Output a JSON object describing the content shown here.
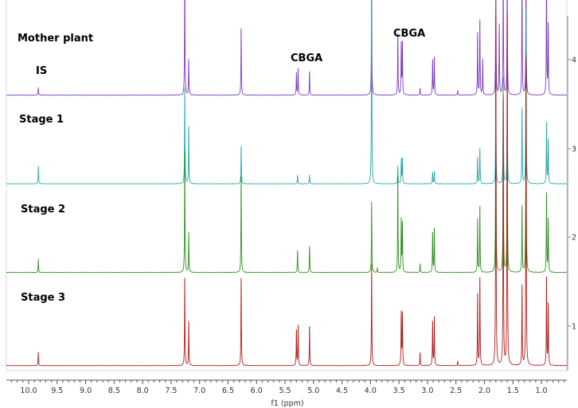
{
  "chart_data": {
    "type": "line",
    "subtype": "stacked NMR spectra",
    "xlabel": "f1 (ppm)",
    "xlim": [
      10.4,
      0.55
    ],
    "x_reversed": true,
    "x_ticks": [
      "10.0",
      "9.5",
      "9.0",
      "8.5",
      "8.0",
      "7.5",
      "7.0",
      "6.5",
      "6.0",
      "5.5",
      "5.0",
      "4.5",
      "4.0",
      "3.5",
      "3.0",
      "2.5",
      "2.0",
      "1.5",
      "1.0"
    ],
    "y_ticks": [
      "1",
      "2",
      "3",
      "4"
    ],
    "grid": false,
    "annotations": [
      {
        "text": "IS",
        "x": 9.83
      },
      {
        "text": "CBGA",
        "x": 5.2
      },
      {
        "text": "CBGA",
        "x": 3.5
      }
    ],
    "series": [
      {
        "name": "Mother plant",
        "color": "#7a3cc0",
        "offset": 3.6,
        "peaks": [
          [
            9.83,
            0.09
          ],
          [
            7.26,
            1.5
          ],
          [
            7.19,
            0.4
          ],
          [
            6.27,
            0.76
          ],
          [
            5.3,
            0.25
          ],
          [
            5.27,
            0.3
          ],
          [
            5.07,
            0.27
          ],
          [
            3.98,
            1.5
          ],
          [
            3.52,
            0.7
          ],
          [
            3.46,
            0.58
          ],
          [
            3.44,
            0.58
          ],
          [
            3.13,
            0.08
          ],
          [
            2.91,
            0.4
          ],
          [
            2.88,
            0.43
          ],
          [
            2.47,
            0.05
          ],
          [
            2.12,
            0.7
          ],
          [
            2.08,
            0.85
          ],
          [
            2.03,
            0.4
          ],
          [
            1.8,
            1.5
          ],
          [
            1.74,
            0.8
          ],
          [
            1.67,
            1.5
          ],
          [
            1.6,
            1.5
          ],
          [
            1.34,
            1.5
          ],
          [
            1.27,
            1.5
          ],
          [
            0.91,
            1.5
          ],
          [
            0.88,
            0.8
          ]
        ]
      },
      {
        "name": "Stage 1",
        "color": "#26a8a8",
        "offset": 2.6,
        "peaks": [
          [
            9.83,
            0.2
          ],
          [
            7.26,
            1.1
          ],
          [
            7.19,
            0.65
          ],
          [
            6.27,
            0.43
          ],
          [
            5.28,
            0.1
          ],
          [
            5.07,
            0.1
          ],
          [
            3.98,
            2.3
          ],
          [
            3.52,
            0.2
          ],
          [
            3.46,
            0.28
          ],
          [
            3.44,
            0.28
          ],
          [
            2.91,
            0.13
          ],
          [
            2.88,
            0.14
          ],
          [
            2.12,
            0.3
          ],
          [
            2.08,
            0.4
          ],
          [
            1.8,
            1.2
          ],
          [
            1.67,
            1.2
          ],
          [
            1.6,
            1.25
          ],
          [
            1.34,
            0.85
          ],
          [
            1.27,
            2.0
          ],
          [
            0.91,
            0.7
          ],
          [
            0.88,
            0.5
          ]
        ]
      },
      {
        "name": "Stage 2",
        "color": "#2e8f1f",
        "offset": 1.6,
        "peaks": [
          [
            9.83,
            0.15
          ],
          [
            7.26,
            1.4
          ],
          [
            7.19,
            0.45
          ],
          [
            6.27,
            1.1
          ],
          [
            5.28,
            0.25
          ],
          [
            5.07,
            0.3
          ],
          [
            3.98,
            0.8
          ],
          [
            3.88,
            0.05
          ],
          [
            3.52,
            1.1
          ],
          [
            3.46,
            0.6
          ],
          [
            3.44,
            0.55
          ],
          [
            3.13,
            0.1
          ],
          [
            2.91,
            0.45
          ],
          [
            2.88,
            0.5
          ],
          [
            2.12,
            0.6
          ],
          [
            2.08,
            0.75
          ],
          [
            1.8,
            2.5
          ],
          [
            1.67,
            2.0
          ],
          [
            1.6,
            2.2
          ],
          [
            1.34,
            0.75
          ],
          [
            1.27,
            2.5
          ],
          [
            0.91,
            0.9
          ],
          [
            0.88,
            0.6
          ]
        ]
      },
      {
        "name": "Stage 3",
        "color": "#b31b1b",
        "offset": 0.55,
        "peaks": [
          [
            9.83,
            0.15
          ],
          [
            7.26,
            1.0
          ],
          [
            7.19,
            0.5
          ],
          [
            6.27,
            1.0
          ],
          [
            5.3,
            0.4
          ],
          [
            5.27,
            0.45
          ],
          [
            5.07,
            0.45
          ],
          [
            3.98,
            1.15
          ],
          [
            3.46,
            0.6
          ],
          [
            3.44,
            0.58
          ],
          [
            3.13,
            0.15
          ],
          [
            2.91,
            0.5
          ],
          [
            2.88,
            0.55
          ],
          [
            2.47,
            0.05
          ],
          [
            2.12,
            0.8
          ],
          [
            2.08,
            1.0
          ],
          [
            1.8,
            4.0
          ],
          [
            1.67,
            3.0
          ],
          [
            1.6,
            4.0
          ],
          [
            1.34,
            0.9
          ],
          [
            1.27,
            3.5
          ],
          [
            0.91,
            1.0
          ],
          [
            0.88,
            0.7
          ]
        ]
      }
    ]
  }
}
